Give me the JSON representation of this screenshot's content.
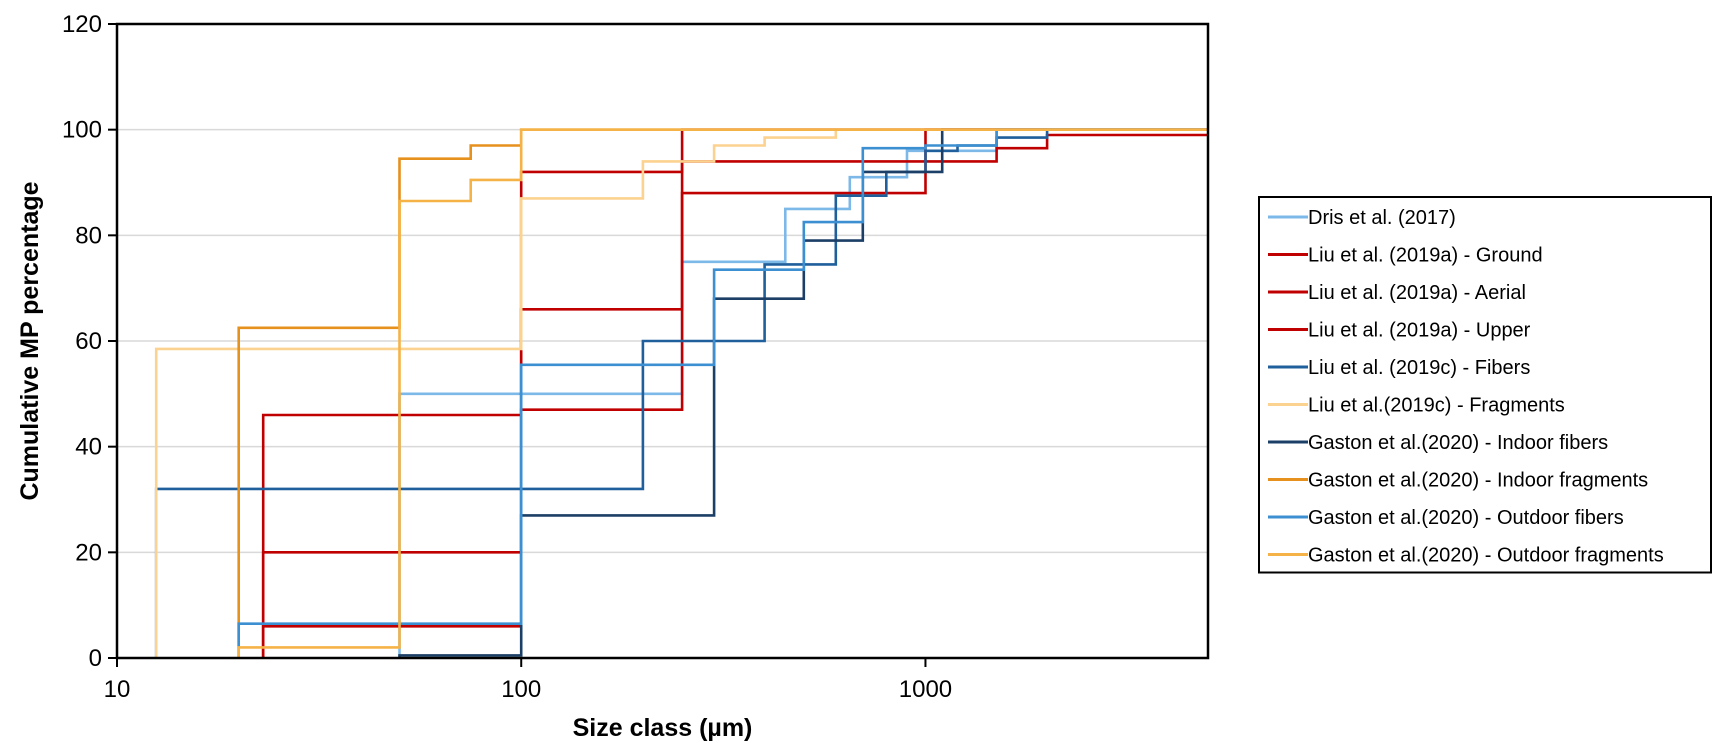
{
  "chart_data": {
    "type": "line",
    "title": "",
    "xlabel": "Size class (µm)",
    "ylabel": "Cumulative MP percentage",
    "xscale": "log",
    "xlim": [
      10,
      5000
    ],
    "ylim": [
      0,
      120
    ],
    "x_ticks": [
      10,
      100,
      1000
    ],
    "x_tick_labels": [
      "10",
      "100",
      "1000"
    ],
    "y_ticks": [
      0,
      20,
      40,
      60,
      80,
      100,
      120
    ],
    "y_tick_labels": [
      "0",
      "20",
      "40",
      "60",
      "80",
      "100",
      "120"
    ],
    "grid": "horizontal",
    "legend_position": "right",
    "step": "post",
    "series": [
      {
        "name": "Dris et al. (2017)",
        "color": "#7db9e8",
        "x": [
          50,
          50,
          250,
          250,
          450,
          450,
          650,
          650,
          900,
          900,
          1500
        ],
        "y": [
          0,
          50,
          50,
          75,
          75,
          85,
          85,
          91,
          91,
          96,
          100
        ]
      },
      {
        "name": "Liu et al. (2019a) - Ground",
        "color": "#c00000",
        "x": [
          23,
          23,
          100,
          100,
          250,
          250,
          1000,
          1000,
          2000,
          2000
        ],
        "y": [
          0,
          46,
          46,
          92,
          92,
          100,
          100,
          100,
          100,
          100
        ]
      },
      {
        "name": "Liu et al. (2019a) - Aerial",
        "color": "#c00000",
        "x": [
          23,
          23,
          100,
          100,
          250,
          250,
          1000,
          1000,
          5000
        ],
        "y": [
          0,
          20,
          20,
          66,
          66,
          88,
          88,
          100,
          100
        ]
      },
      {
        "name": "Liu et al. (2019a) - Upper",
        "color": "#c00000",
        "x": [
          23,
          23,
          100,
          100,
          250,
          250,
          300,
          300,
          1500,
          1500,
          2000,
          2000,
          5000
        ],
        "y": [
          0,
          6,
          6,
          47,
          47,
          94,
          94,
          94,
          94,
          96.5,
          96.5,
          99,
          99
        ]
      },
      {
        "name": "Liu et al. (2019c) - Fibers",
        "color": "#1f5f9b",
        "x": [
          12.5,
          12.5,
          200,
          200,
          400,
          400,
          600,
          600,
          800,
          800,
          1000,
          1000,
          1200,
          1200,
          1500,
          1500,
          2000,
          2000
        ],
        "y": [
          0,
          32,
          32,
          60,
          60,
          74.5,
          74.5,
          87.5,
          87.5,
          92,
          92,
          96,
          96,
          97,
          97,
          98.5,
          98.5,
          100
        ]
      },
      {
        "name": "Liu et al.(2019c) - Fragments",
        "color": "#fbd28f",
        "x": [
          12.5,
          12.5,
          100,
          100,
          200,
          200,
          300,
          300,
          400,
          400,
          600,
          600,
          5000
        ],
        "y": [
          0,
          58.5,
          58.5,
          87,
          87,
          94,
          94,
          97,
          97,
          98.5,
          98.5,
          100,
          100
        ]
      },
      {
        "name": "Gaston et al.(2020) - Indoor fibers",
        "color": "#1b3f66",
        "x": [
          50,
          50,
          100,
          100,
          300,
          300,
          500,
          500,
          700,
          700,
          1100,
          1100,
          5000
        ],
        "y": [
          0,
          0.5,
          0.5,
          27,
          27,
          68,
          68,
          79,
          79,
          92,
          92,
          100,
          100
        ]
      },
      {
        "name": "Gaston et al.(2020) - Indoor fragments",
        "color": "#e6901e",
        "x": [
          20,
          20,
          50,
          50,
          75,
          75,
          100,
          100,
          5000
        ],
        "y": [
          0,
          62.5,
          62.5,
          94.5,
          94.5,
          97,
          97,
          100,
          100
        ]
      },
      {
        "name": "Gaston et al.(2020) - Outdoor fibers",
        "color": "#3c8fd0",
        "x": [
          20,
          20,
          100,
          100,
          300,
          300,
          500,
          500,
          700,
          700,
          1000,
          1000,
          1500,
          1500,
          5000
        ],
        "y": [
          0,
          6.5,
          6.5,
          55.5,
          55.5,
          73.5,
          73.5,
          82.5,
          82.5,
          96.5,
          96.5,
          97,
          97,
          100,
          100
        ]
      },
      {
        "name": "Gaston et al.(2020) - Outdoor fragments",
        "color": "#f5b347",
        "x": [
          20,
          20,
          50,
          50,
          75,
          75,
          100,
          100,
          5000
        ],
        "y": [
          0,
          2,
          2,
          86.5,
          86.5,
          90.5,
          90.5,
          100,
          100
        ]
      }
    ]
  }
}
